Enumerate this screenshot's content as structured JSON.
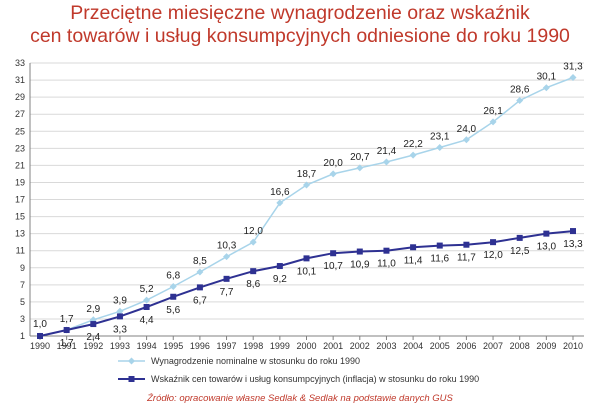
{
  "chart_data": {
    "type": "line",
    "title_line1": "Przeciętne miesięczne wynagrodzenie oraz wskaźnik",
    "title_line2": "cen towarów i usług konsumpcyjnych odniesione do roku 1990",
    "source": "Źródło: opracowanie własne Sedlak & Sedlak na podstawie danych GUS",
    "categories": [
      "1990",
      "1991",
      "1992",
      "1993",
      "1994",
      "1995",
      "1996",
      "1997",
      "1998",
      "1999",
      "2000",
      "2001",
      "2002",
      "2003",
      "2004",
      "2005",
      "2006",
      "2007",
      "2008",
      "2009",
      "2010"
    ],
    "y_ticks": [
      "1",
      "3",
      "5",
      "7",
      "9",
      "11",
      "13",
      "15",
      "17",
      "19",
      "21",
      "23",
      "25",
      "27",
      "29",
      "31",
      "33"
    ],
    "ylim": [
      1,
      33
    ],
    "grid": "horizontal",
    "legend_position": "bottom",
    "series": [
      {
        "name": "Wynagrodzenie nominalne w stosunku do roku 1990",
        "color": "#a8d4ea",
        "marker": "diamond",
        "values": [
          1.0,
          1.7,
          2.9,
          3.9,
          5.2,
          6.8,
          8.5,
          10.3,
          12.0,
          16.6,
          18.7,
          20.0,
          20.7,
          21.4,
          22.2,
          23.1,
          24.0,
          26.1,
          28.6,
          30.1,
          31.3
        ],
        "labels": [
          "1,0",
          "1,7",
          "2,9",
          "3,9",
          "5,2",
          "6,8",
          "8,5",
          "10,3",
          "12,0",
          "16,6",
          "18,7",
          "20,0",
          "20,7",
          "21,4",
          "22,2",
          "23,1",
          "24,0",
          "26,1",
          "28,6",
          "30,1",
          "31,3"
        ]
      },
      {
        "name": "Wskaźnik cen towarów i usług konsumpcyjnych (inflacja) w stosunku do roku 1990",
        "color": "#2e3192",
        "marker": "square",
        "values": [
          1.0,
          1.7,
          2.4,
          3.3,
          4.4,
          5.6,
          6.7,
          7.7,
          8.6,
          9.2,
          10.1,
          10.7,
          10.9,
          11.0,
          11.4,
          11.6,
          11.7,
          12.0,
          12.5,
          13.0,
          13.3
        ],
        "labels": [
          "",
          "1,7",
          "2,4",
          "3,3",
          "4,4",
          "5,6",
          "6,7",
          "7,7",
          "8,6",
          "9,2",
          "10,1",
          "10,7",
          "10,9",
          "11,0",
          "11,4",
          "11,6",
          "11,7",
          "12,0",
          "12,5",
          "13,0",
          "13,3"
        ]
      }
    ]
  }
}
